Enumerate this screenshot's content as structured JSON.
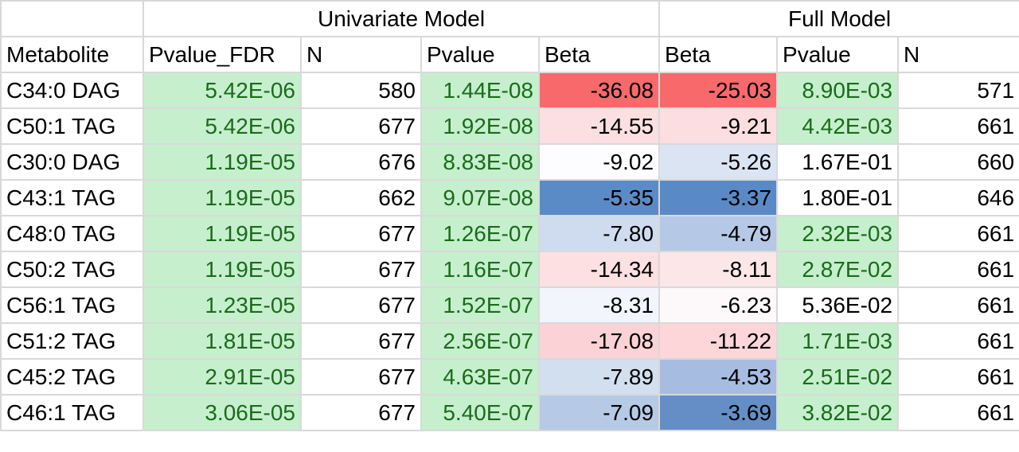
{
  "header_groups": {
    "univariate": "Univariate Model",
    "full": "Full Model"
  },
  "columns": [
    "Metabolite",
    "Pvalue_FDR",
    "N",
    "Pvalue",
    "Beta",
    "Beta",
    "Pvalue",
    "N"
  ],
  "rows": [
    {
      "metabolite": "C34:0 DAG",
      "pvalue_fdr": "5.42E-06",
      "n_uni": "580",
      "pvalue_uni": "1.44E-08",
      "beta_uni": "-36.08",
      "beta_full": "-25.03",
      "pvalue_full": "8.90E-03",
      "n_full": "571"
    },
    {
      "metabolite": "C50:1 TAG",
      "pvalue_fdr": "5.42E-06",
      "n_uni": "677",
      "pvalue_uni": "1.92E-08",
      "beta_uni": "-14.55",
      "beta_full": "-9.21",
      "pvalue_full": "4.42E-03",
      "n_full": "661"
    },
    {
      "metabolite": "C30:0 DAG",
      "pvalue_fdr": "1.19E-05",
      "n_uni": "676",
      "pvalue_uni": "8.83E-08",
      "beta_uni": "-9.02",
      "beta_full": "-5.26",
      "pvalue_full": "1.67E-01",
      "n_full": "660"
    },
    {
      "metabolite": "C43:1 TAG",
      "pvalue_fdr": "1.19E-05",
      "n_uni": "662",
      "pvalue_uni": "9.07E-08",
      "beta_uni": "-5.35",
      "beta_full": "-3.37",
      "pvalue_full": "1.80E-01",
      "n_full": "646"
    },
    {
      "metabolite": "C48:0 TAG",
      "pvalue_fdr": "1.19E-05",
      "n_uni": "677",
      "pvalue_uni": "1.26E-07",
      "beta_uni": "-7.80",
      "beta_full": "-4.79",
      "pvalue_full": "2.32E-03",
      "n_full": "661"
    },
    {
      "metabolite": "C50:2 TAG",
      "pvalue_fdr": "1.19E-05",
      "n_uni": "677",
      "pvalue_uni": "1.16E-07",
      "beta_uni": "-14.34",
      "beta_full": "-8.11",
      "pvalue_full": "2.87E-02",
      "n_full": "661"
    },
    {
      "metabolite": "C56:1 TAG",
      "pvalue_fdr": "1.23E-05",
      "n_uni": "677",
      "pvalue_uni": "1.52E-07",
      "beta_uni": "-8.31",
      "beta_full": "-6.23",
      "pvalue_full": "5.36E-02",
      "n_full": "661"
    },
    {
      "metabolite": "C51:2 TAG",
      "pvalue_fdr": "1.81E-05",
      "n_uni": "677",
      "pvalue_uni": "2.56E-07",
      "beta_uni": "-17.08",
      "beta_full": "-11.22",
      "pvalue_full": "1.71E-03",
      "n_full": "661"
    },
    {
      "metabolite": "C45:2 TAG",
      "pvalue_fdr": "2.91E-05",
      "n_uni": "677",
      "pvalue_uni": "4.63E-07",
      "beta_uni": "-7.89",
      "beta_full": "-4.53",
      "pvalue_full": "2.51E-02",
      "n_full": "661"
    },
    {
      "metabolite": "C46:1 TAG",
      "pvalue_fdr": "3.06E-05",
      "n_uni": "677",
      "pvalue_uni": "5.40E-07",
      "beta_uni": "-7.09",
      "beta_full": "-3.69",
      "pvalue_full": "3.82E-02",
      "n_full": "661"
    }
  ],
  "colors": {
    "green_fill": "#c6efce",
    "green_text": "#1b6b1b",
    "beta_negative_strong": "#f8696b",
    "beta_neutral": "#fcfcff",
    "beta_positive_strong": "#5a8ac6",
    "grid": "#d9d9d9"
  },
  "cell_fills": {
    "beta_uni": [
      "#f8696b",
      "#fcdfe1",
      "#fdfdff",
      "#5b8bc6",
      "#cfdcef",
      "#fce0e2",
      "#f2f5fc",
      "#fbd2d5",
      "#d2dfef",
      "#b6c9e5"
    ],
    "beta_full": [
      "#f8696b",
      "#fcdee0",
      "#dbe4f3",
      "#5a8ac6",
      "#b5c8e5",
      "#fbe6e8",
      "#fdf8fa",
      "#fcd6d8",
      "#a6bde1",
      "#658ec7"
    ]
  }
}
